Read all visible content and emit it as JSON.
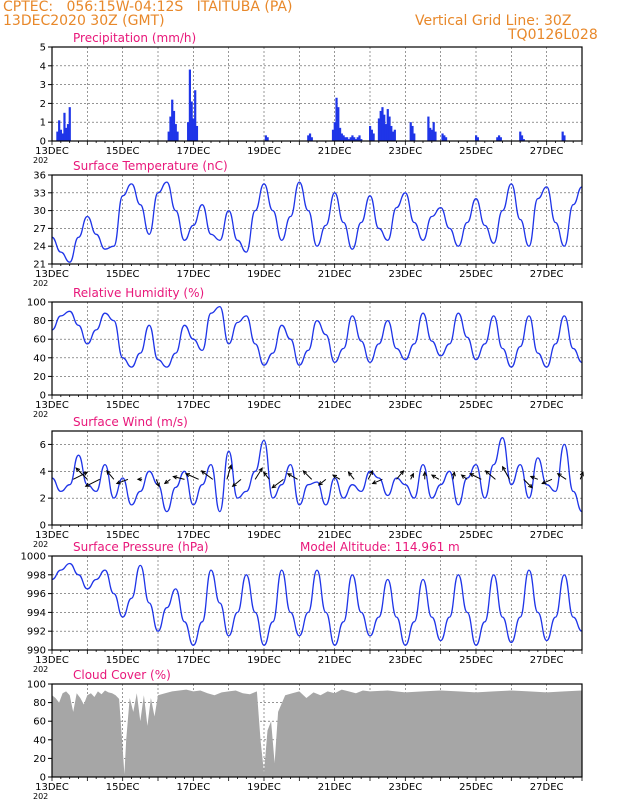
{
  "header": {
    "line1": "CPTEC:   056:15W-04:12S   ITAITUBA (PA)",
    "line2": "13DEC2020 30Z (GMT)",
    "grid_note": "Vertical Grid Line: 30Z",
    "code": "TQ0126L028"
  },
  "colors": {
    "header": "#e8882a",
    "panel_title": "#e8177a",
    "series": "#1f35e8",
    "cloud": "#a6a6a6",
    "grid": "#555555"
  },
  "x_tick_labels": [
    "13DEC",
    "15DEC",
    "17DEC",
    "19DEC",
    "21DEC",
    "23DEC",
    "25DEC",
    "27DEC"
  ],
  "year_stub": "202",
  "model_altitude": "Model Altitude: 114.961 m",
  "chart_data": [
    {
      "type": "bar",
      "title": "Precipitation (mm/h)",
      "xlim": [
        0,
        15
      ],
      "ylim": [
        0,
        5
      ],
      "yticks": [
        0,
        1,
        2,
        3,
        4,
        5
      ],
      "x": [
        0.15,
        0.2,
        0.25,
        0.3,
        0.35,
        0.4,
        0.45,
        0.5,
        3.3,
        3.35,
        3.4,
        3.45,
        3.5,
        3.55,
        3.85,
        3.9,
        3.95,
        4.0,
        4.05,
        4.1,
        6.05,
        6.1,
        7.25,
        7.3,
        7.35,
        7.95,
        8.0,
        8.05,
        8.1,
        8.15,
        8.2,
        8.25,
        8.3,
        8.35,
        8.4,
        8.45,
        8.5,
        8.55,
        8.6,
        8.65,
        8.7,
        8.75,
        9.0,
        9.05,
        9.1,
        9.25,
        9.3,
        9.35,
        9.4,
        9.45,
        9.5,
        9.55,
        9.6,
        9.65,
        9.7,
        10.15,
        10.2,
        10.25,
        10.65,
        10.7,
        10.75,
        10.8,
        10.85,
        11.05,
        11.1,
        11.15,
        12.0,
        12.05,
        12.6,
        12.65,
        12.7,
        13.25,
        13.3,
        13.35,
        14.45,
        14.5
      ],
      "values": [
        0.5,
        1.1,
        0.6,
        0.4,
        1.5,
        0.7,
        0.9,
        1.8,
        0.5,
        1.3,
        2.2,
        1.6,
        0.9,
        0.5,
        1.0,
        3.8,
        2.1,
        1.2,
        2.7,
        0.8,
        0.3,
        0.2,
        0.3,
        0.4,
        0.2,
        0.6,
        1.0,
        2.3,
        1.8,
        0.7,
        0.4,
        0.3,
        0.2,
        0.2,
        0.1,
        0.2,
        0.3,
        0.2,
        0.1,
        0.2,
        0.3,
        0.1,
        0.8,
        0.6,
        0.4,
        1.2,
        1.6,
        1.8,
        1.4,
        0.9,
        1.7,
        1.3,
        0.8,
        0.5,
        0.6,
        1.0,
        0.8,
        0.4,
        1.3,
        0.7,
        0.6,
        1.0,
        0.5,
        0.4,
        0.3,
        0.2,
        0.3,
        0.2,
        0.2,
        0.3,
        0.2,
        0.5,
        0.3,
        0.1,
        0.5,
        0.3
      ]
    },
    {
      "type": "line",
      "title": "Surface Temperature (nC)",
      "xlim": [
        0,
        15
      ],
      "ylim": [
        21,
        36
      ],
      "yticks": [
        21,
        24,
        27,
        30,
        33,
        36
      ],
      "x": [
        0.0,
        0.25,
        0.5,
        0.75,
        1.0,
        1.25,
        1.5,
        1.75,
        2.0,
        2.25,
        2.5,
        2.75,
        3.0,
        3.25,
        3.5,
        3.75,
        4.0,
        4.25,
        4.5,
        4.75,
        5.0,
        5.25,
        5.5,
        5.75,
        6.0,
        6.25,
        6.5,
        6.75,
        7.0,
        7.25,
        7.5,
        7.75,
        8.0,
        8.25,
        8.5,
        8.75,
        9.0,
        9.25,
        9.5,
        9.75,
        10.0,
        10.25,
        10.5,
        10.75,
        11.0,
        11.25,
        11.5,
        11.75,
        12.0,
        12.25,
        12.5,
        12.75,
        13.0,
        13.25,
        13.5,
        13.75,
        14.0,
        14.25,
        14.5,
        14.75,
        15.0
      ],
      "values": [
        25.5,
        23.0,
        21.3,
        25.5,
        29.0,
        26.0,
        23.5,
        24.0,
        32.5,
        34.5,
        31.0,
        26.0,
        33.0,
        34.8,
        30.0,
        25.0,
        27.5,
        31.0,
        26.0,
        25.0,
        30.0,
        25.0,
        23.0,
        30.0,
        34.5,
        30.0,
        25.0,
        29.0,
        34.8,
        30.0,
        24.0,
        27.5,
        33.0,
        28.0,
        23.5,
        28.0,
        32.5,
        27.0,
        25.0,
        30.5,
        33.0,
        28.0,
        25.0,
        29.0,
        30.5,
        27.0,
        24.0,
        28.0,
        32.0,
        27.5,
        24.5,
        30.0,
        34.5,
        28.5,
        24.0,
        32.0,
        34.0,
        28.0,
        24.0,
        31.0,
        34.0
      ]
    },
    {
      "type": "line",
      "title": "Relative Humidity (%)",
      "xlim": [
        0,
        15
      ],
      "ylim": [
        0,
        100
      ],
      "yticks": [
        0,
        20,
        40,
        60,
        80,
        100
      ],
      "x": [
        0.0,
        0.25,
        0.5,
        0.75,
        1.0,
        1.25,
        1.5,
        1.75,
        2.0,
        2.25,
        2.5,
        2.75,
        3.0,
        3.25,
        3.5,
        3.75,
        4.0,
        4.25,
        4.5,
        4.75,
        5.0,
        5.25,
        5.5,
        5.75,
        6.0,
        6.25,
        6.5,
        6.75,
        7.0,
        7.25,
        7.5,
        7.75,
        8.0,
        8.25,
        8.5,
        8.75,
        9.0,
        9.25,
        9.5,
        9.75,
        10.0,
        10.25,
        10.5,
        10.75,
        11.0,
        11.25,
        11.5,
        11.75,
        12.0,
        12.25,
        12.5,
        12.75,
        13.0,
        13.25,
        13.5,
        13.75,
        14.0,
        14.25,
        14.5,
        14.75,
        15.0
      ],
      "values": [
        70,
        85,
        90,
        75,
        55,
        70,
        88,
        80,
        40,
        30,
        45,
        75,
        38,
        30,
        45,
        75,
        60,
        48,
        88,
        95,
        55,
        78,
        85,
        55,
        32,
        45,
        75,
        60,
        32,
        48,
        80,
        65,
        35,
        50,
        85,
        58,
        35,
        55,
        80,
        50,
        38,
        55,
        88,
        58,
        42,
        55,
        88,
        62,
        38,
        55,
        85,
        50,
        30,
        52,
        85,
        45,
        30,
        55,
        85,
        50,
        35
      ]
    },
    {
      "type": "line",
      "title": "Surface Wind (m/s)",
      "xlim": [
        0,
        15
      ],
      "ylim": [
        0,
        7
      ],
      "yticks": [
        0,
        2,
        4,
        6
      ],
      "x": [
        0.0,
        0.25,
        0.5,
        0.75,
        1.0,
        1.25,
        1.5,
        1.75,
        2.0,
        2.25,
        2.5,
        2.75,
        3.0,
        3.25,
        3.5,
        3.75,
        4.0,
        4.25,
        4.5,
        4.75,
        5.0,
        5.25,
        5.5,
        5.75,
        6.0,
        6.25,
        6.5,
        6.75,
        7.0,
        7.25,
        7.5,
        7.75,
        8.0,
        8.25,
        8.5,
        8.75,
        9.0,
        9.25,
        9.5,
        9.75,
        10.0,
        10.25,
        10.5,
        10.75,
        11.0,
        11.25,
        11.5,
        11.75,
        12.0,
        12.25,
        12.5,
        12.75,
        13.0,
        13.25,
        13.5,
        13.75,
        14.0,
        14.25,
        14.5,
        14.75,
        15.0
      ],
      "values": [
        3.5,
        2.5,
        3.0,
        5.2,
        3.0,
        2.5,
        4.5,
        2.0,
        3.5,
        1.5,
        2.5,
        4.0,
        3.0,
        1.0,
        2.8,
        4.0,
        1.5,
        3.0,
        4.5,
        1.0,
        5.5,
        2.0,
        2.5,
        4.0,
        6.3,
        2.0,
        3.0,
        4.5,
        1.5,
        3.0,
        3.2,
        1.5,
        3.5,
        2.0,
        3.0,
        2.5,
        4.0,
        3.5,
        2.2,
        3.5,
        3.0,
        2.0,
        4.5,
        2.0,
        3.0,
        4.0,
        1.5,
        3.5,
        4.5,
        2.0,
        4.5,
        6.5,
        3.0,
        4.5,
        2.0,
        5.0,
        3.0,
        2.5,
        6.0,
        2.5,
        1.0
      ],
      "vectors": {
        "x": [
          0.6,
          1.0,
          1.35,
          1.75,
          2.15,
          2.55,
          2.95,
          3.35,
          3.75,
          4.15,
          4.55,
          4.95,
          5.35,
          5.75,
          6.15,
          6.55,
          6.95,
          7.35,
          7.75,
          8.15,
          8.55,
          8.95,
          9.35,
          9.75,
          10.15,
          10.55,
          10.95,
          11.35,
          11.75,
          12.15,
          12.55,
          12.95,
          13.35,
          13.75,
          14.15,
          14.55,
          14.95
        ],
        "u": [
          1.0,
          -0.8,
          -1.0,
          -0.5,
          -0.8,
          -0.3,
          0.2,
          -0.4,
          -0.8,
          -0.9,
          -0.8,
          0.3,
          -0.6,
          0.5,
          -0.4,
          -0.8,
          -0.7,
          -0.6,
          -0.5,
          -0.5,
          -0.4,
          0.3,
          -0.7,
          0.5,
          0.2,
          0.0,
          -0.5,
          0.1,
          -0.4,
          -0.8,
          -0.7,
          -0.5,
          0.6,
          -0.5,
          -0.7,
          -0.6,
          0.2
        ],
        "v": [
          0.5,
          0.8,
          -0.5,
          0.6,
          -0.3,
          0.0,
          -0.5,
          -0.3,
          0.2,
          0.4,
          0.6,
          1.0,
          -0.5,
          0.8,
          0.5,
          -0.6,
          0.4,
          0.6,
          -0.4,
          0.3,
          0.5,
          0.6,
          -0.3,
          0.6,
          0.4,
          0.5,
          0.3,
          0.5,
          0.3,
          0.4,
          0.6,
          0.9,
          -0.6,
          0.2,
          -0.3,
          0.4,
          0.5
        ]
      }
    },
    {
      "type": "line",
      "title": "Surface Pressure (hPa)",
      "xlim": [
        0,
        15
      ],
      "ylim": [
        990,
        1000
      ],
      "yticks": [
        990,
        992,
        994,
        996,
        998,
        1000
      ],
      "x": [
        0.0,
        0.25,
        0.5,
        0.75,
        1.0,
        1.25,
        1.5,
        1.75,
        2.0,
        2.25,
        2.5,
        2.75,
        3.0,
        3.25,
        3.5,
        3.75,
        4.0,
        4.25,
        4.5,
        4.75,
        5.0,
        5.25,
        5.5,
        5.75,
        6.0,
        6.25,
        6.5,
        6.75,
        7.0,
        7.25,
        7.5,
        7.75,
        8.0,
        8.25,
        8.5,
        8.75,
        9.0,
        9.25,
        9.5,
        9.75,
        10.0,
        10.25,
        10.5,
        10.75,
        11.0,
        11.25,
        11.5,
        11.75,
        12.0,
        12.25,
        12.5,
        12.75,
        13.0,
        13.25,
        13.5,
        13.75,
        14.0,
        14.25,
        14.5,
        14.75,
        15.0
      ],
      "values": [
        997.5,
        998.5,
        999.2,
        998.0,
        996.5,
        997.5,
        998.5,
        996.0,
        993.5,
        995.5,
        999.0,
        995.0,
        992.0,
        994.5,
        996.5,
        993.0,
        990.5,
        993.0,
        998.5,
        995.0,
        991.5,
        994.0,
        998.0,
        994.0,
        990.5,
        993.0,
        998.5,
        994.0,
        991.5,
        994.0,
        998.5,
        994.0,
        990.5,
        993.0,
        998.0,
        994.0,
        991.5,
        993.5,
        997.5,
        993.5,
        990.5,
        993.0,
        997.5,
        993.5,
        991.0,
        993.5,
        998.0,
        994.0,
        990.5,
        993.0,
        998.0,
        993.5,
        990.8,
        993.5,
        998.5,
        994.0,
        991.0,
        993.5,
        998.0,
        993.5,
        992.0
      ]
    },
    {
      "type": "area",
      "title": "Cloud Cover (%)",
      "xlim": [
        0,
        15
      ],
      "ylim": [
        0,
        100
      ],
      "yticks": [
        0,
        20,
        40,
        60,
        80,
        100
      ],
      "x": [
        0.0,
        0.1,
        0.2,
        0.3,
        0.4,
        0.5,
        0.6,
        0.7,
        0.8,
        0.9,
        1.0,
        1.1,
        1.2,
        1.3,
        1.4,
        1.5,
        1.6,
        1.7,
        1.8,
        1.9,
        2.0,
        2.05,
        2.1,
        2.2,
        2.3,
        2.4,
        2.5,
        2.6,
        2.7,
        2.8,
        2.9,
        3.0,
        3.2,
        3.4,
        3.6,
        3.8,
        4.0,
        4.2,
        4.4,
        4.6,
        4.8,
        5.0,
        5.2,
        5.4,
        5.6,
        5.8,
        5.9,
        6.0,
        6.1,
        6.2,
        6.3,
        6.4,
        6.6,
        6.8,
        7.0,
        7.2,
        7.4,
        7.6,
        7.8,
        8.0,
        8.2,
        8.4,
        8.6,
        8.8,
        9.0,
        9.5,
        10.0,
        10.5,
        11.0,
        11.5,
        12.0,
        12.5,
        13.0,
        13.5,
        14.0,
        14.5,
        15.0
      ],
      "values": [
        88,
        85,
        80,
        90,
        92,
        88,
        70,
        90,
        85,
        78,
        88,
        90,
        86,
        92,
        89,
        93,
        91,
        90,
        88,
        84,
        30,
        3,
        40,
        85,
        70,
        90,
        60,
        88,
        55,
        85,
        65,
        88,
        90,
        92,
        93,
        94,
        92,
        93,
        90,
        88,
        91,
        92,
        93,
        90,
        89,
        92,
        40,
        5,
        50,
        60,
        15,
        70,
        88,
        90,
        92,
        85,
        91,
        88,
        92,
        90,
        94,
        92,
        90,
        93,
        92,
        93,
        91,
        92,
        93,
        92,
        91,
        92,
        93,
        92,
        91,
        92,
        93
      ]
    }
  ]
}
